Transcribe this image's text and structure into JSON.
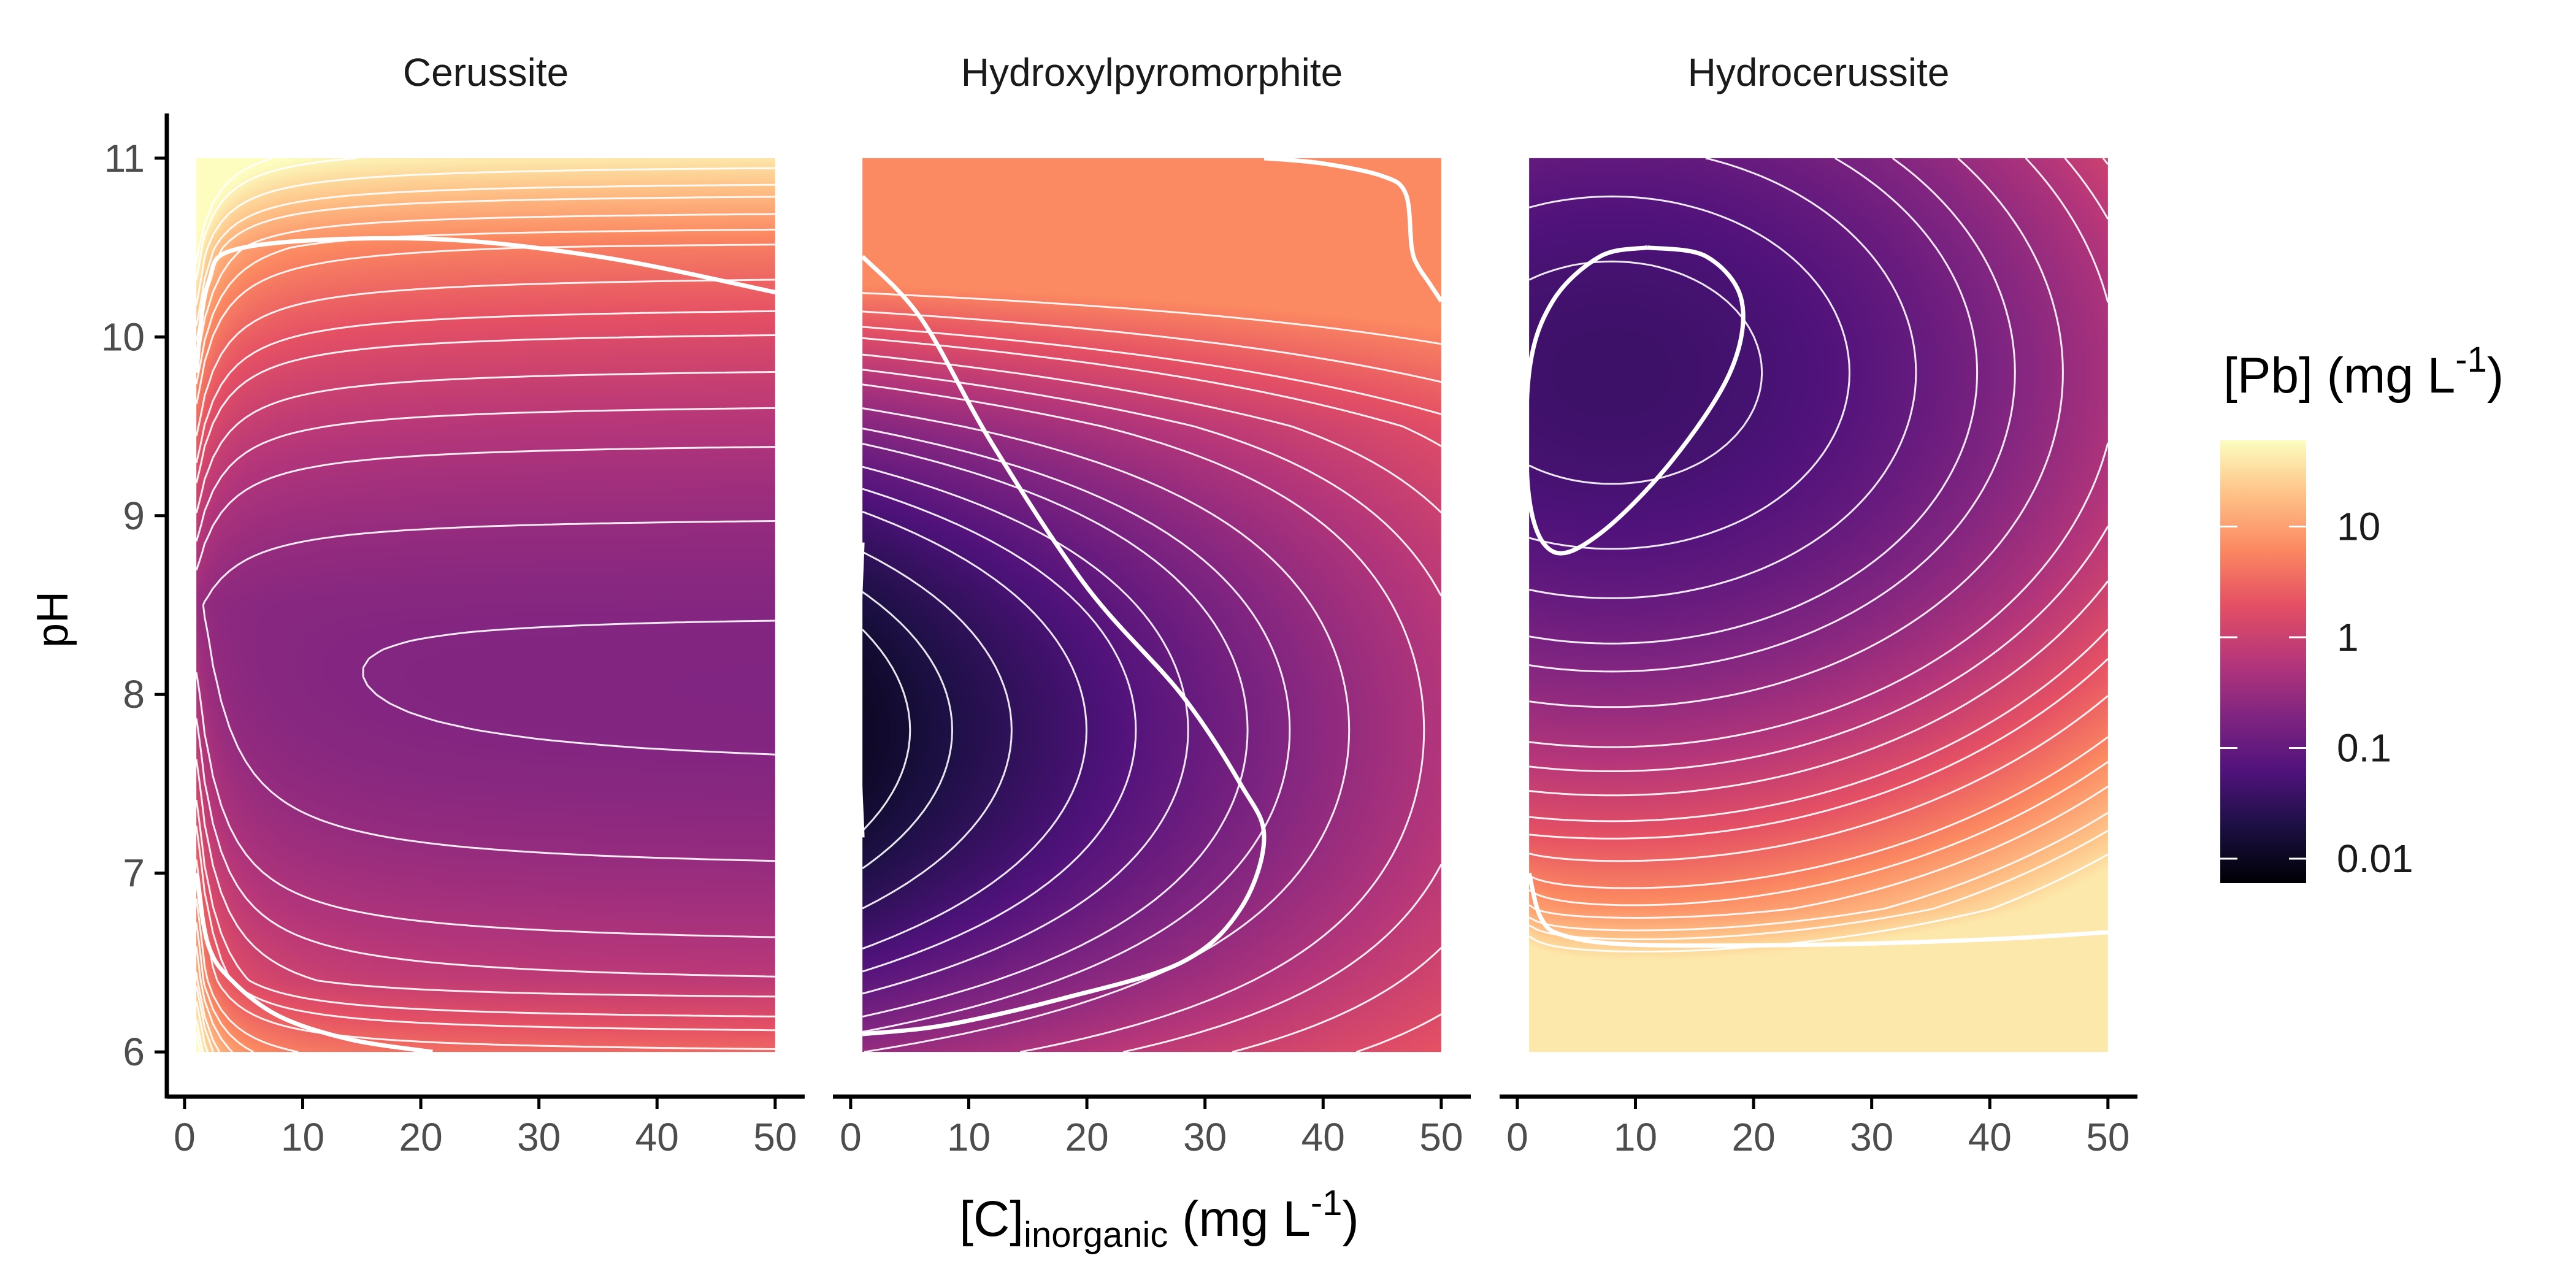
{
  "chart_data": {
    "type": "heatmap",
    "description_free": true,
    "panels": [
      {
        "title": "Cerussite",
        "x": [
          1,
          50
        ],
        "y": [
          6,
          11
        ],
        "min_point": {
          "x": 25,
          "y": 8.0,
          "value": 0.18
        },
        "solid_contours": [
          {
            "label": "",
            "points": [
              [
                1,
                9.8
              ],
              [
                2,
                10.3
              ],
              [
                5,
                10.5
              ],
              [
                20,
                10.55
              ],
              [
                35,
                10.45
              ],
              [
                50,
                10.25
              ]
            ]
          },
          {
            "label": "",
            "points": [
              [
                1,
                7.0
              ],
              [
                2,
                6.6
              ],
              [
                4,
                6.4
              ],
              [
                8,
                6.2
              ],
              [
                14,
                6.07
              ],
              [
                21,
                6.0
              ]
            ]
          }
        ]
      },
      {
        "title": "Hydroxylpyromorphite",
        "x": [
          1,
          50
        ],
        "y": [
          6,
          11
        ],
        "min_point": {
          "x": 1,
          "y": 7.8,
          "value": 0.01
        },
        "solid_contours": [
          {
            "label": "",
            "points": [
              [
                1,
                10.45
              ],
              [
                6,
                10.1
              ],
              [
                12,
                9.4
              ],
              [
                20,
                8.6
              ],
              [
                28,
                8.0
              ],
              [
                33,
                7.5
              ],
              [
                35,
                7.2
              ],
              [
                33,
                6.8
              ],
              [
                28,
                6.5
              ],
              [
                18,
                6.3
              ],
              [
                8,
                6.15
              ],
              [
                1,
                6.1
              ]
            ]
          },
          {
            "label": "",
            "points": [
              [
                35,
                11.0
              ],
              [
                40,
                10.97
              ],
              [
                45,
                10.9
              ],
              [
                47,
                10.8
              ],
              [
                47.5,
                10.5
              ],
              [
                48,
                10.4
              ],
              [
                49,
                10.3
              ],
              [
                50,
                10.2
              ]
            ]
          },
          {
            "label": "",
            "points": [
              [
                1,
                8.85
              ],
              [
                0.6,
                8.0
              ],
              [
                1,
                7.2
              ]
            ]
          }
        ]
      },
      {
        "title": "Hydrocerussite",
        "x": [
          1,
          50
        ],
        "y": [
          6,
          11
        ],
        "min_point": {
          "x": 8,
          "y": 9.8,
          "value": 0.04
        },
        "solid_contours": [
          {
            "label": "",
            "points": [
              [
                11,
                10.5
              ],
              [
                16,
                10.45
              ],
              [
                19,
                10.2
              ],
              [
                18,
                9.8
              ],
              [
                13,
                9.3
              ],
              [
                7,
                8.9
              ],
              [
                3,
                8.8
              ],
              [
                1,
                9.1
              ],
              [
                1,
                9.8
              ],
              [
                3,
                10.2
              ],
              [
                7,
                10.45
              ],
              [
                11,
                10.5
              ]
            ]
          },
          {
            "label": "",
            "points": [
              [
                1,
                7.0
              ],
              [
                2,
                6.75
              ],
              [
                4,
                6.65
              ],
              [
                10,
                6.6
              ],
              [
                25,
                6.6
              ],
              [
                40,
                6.63
              ],
              [
                50,
                6.67
              ]
            ]
          }
        ]
      }
    ],
    "xlabel": {
      "main": "[C]",
      "sub": "inorganic",
      "unit_pre": " (mg L",
      "sup": "-1",
      "unit_post": ")"
    },
    "ylabel": "pH",
    "x_ticks": [
      "0",
      "10",
      "20",
      "30",
      "40",
      "50"
    ],
    "x_tick_values": [
      0,
      10,
      20,
      30,
      40,
      50
    ],
    "y_ticks": [
      "6",
      "7",
      "8",
      "9",
      "10",
      "11"
    ],
    "y_tick_values": [
      6,
      7,
      8,
      9,
      10,
      11
    ],
    "xlim": [
      -1.5,
      52.5
    ],
    "ylim": [
      5.75,
      11.25
    ],
    "legend": {
      "title_main": "[Pb] (mg L",
      "title_sup": "-1",
      "title_post": ")",
      "position": "right",
      "ticks": [
        "10",
        "1",
        "0.1",
        "0.01"
      ],
      "tick_values": [
        10,
        1,
        0.1,
        0.01
      ],
      "range": [
        0.006,
        60
      ],
      "scale": "log",
      "colormap": "magma"
    },
    "colors": {
      "solid_contour": "#ffffff",
      "dashed_contour": "#ffffff",
      "axis": "#000000",
      "tick_label": "#4d4d4d"
    }
  }
}
